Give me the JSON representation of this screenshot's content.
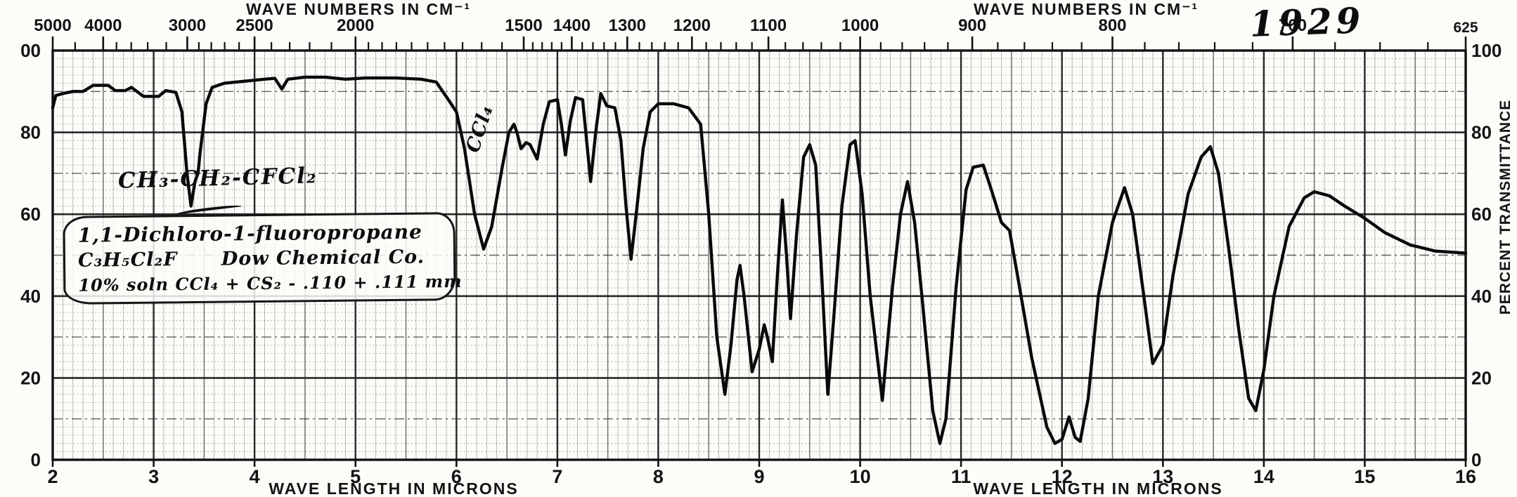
{
  "annotations": {
    "formula": "CH₃-CH₂-CFCl₂",
    "compound_name": "1,1-Dichloro-1-fluoropropane",
    "empirical_formula": "C₃H₅Cl₂F",
    "source": "Dow Chemical Co.",
    "sample_note": "10% soln CCl₄ + CS₂ - .110 + .111 mm",
    "solvent_band_label": "CCl₄",
    "spectrum_number": "1929"
  },
  "axes": {
    "top_title_left": "WAVE NUMBERS IN CM⁻¹",
    "top_title_right": "WAVE NUMBERS IN CM⁻¹",
    "bottom_title_left": "WAVE LENGTH IN MICRONS",
    "bottom_title_right": "WAVE LENGTH IN MICRONS",
    "right_title": "PERCENT TRANSMITTANCE"
  },
  "chart_data": {
    "type": "line",
    "title": "Infrared spectrum, 1,1-Dichloro-1-fluoropropane (spectrum no. 1929)",
    "xlabel": "WAVE LENGTH IN MICRONS",
    "ylabel": "PERCENT TRANSMITTANCE",
    "top_axis_label": "WAVE NUMBERS IN CM⁻¹",
    "xlim": [
      2,
      16
    ],
    "ylim": [
      0,
      100
    ],
    "grid": "fine 0.1 micron by 2 %T, heavy every 1 micron and 20 %T",
    "legend_position": "none",
    "x_tick_labels": [
      "2",
      "3",
      "4",
      "5",
      "6",
      "7",
      "8",
      "9",
      "10",
      "11",
      "12",
      "13",
      "14",
      "15",
      "16"
    ],
    "y_tick_values": [
      100,
      80,
      60,
      40,
      20,
      0
    ],
    "left_axis_display_labels": [
      "00",
      "80",
      "60",
      "40",
      "20",
      "0"
    ],
    "right_axis_display_labels": [
      "100",
      "80",
      "60",
      "40",
      "20",
      "0"
    ],
    "wavenumber_major_ticks": [
      5000,
      4000,
      3000,
      2500,
      2000,
      1500,
      1400,
      1300,
      1200,
      1100,
      1000,
      900,
      800,
      700,
      625
    ],
    "wavenumber_minor_ticks": [
      4500,
      3800,
      3600,
      3400,
      3200,
      2900,
      2800,
      2700,
      2600,
      2400,
      2300,
      2200,
      2100,
      1950,
      1900,
      1850,
      1800,
      1750,
      1700,
      1650,
      1600,
      1550,
      1480,
      1460,
      1440,
      1420,
      1380,
      1360,
      1340,
      1320,
      1280,
      1260,
      1240,
      1220,
      1180,
      1160,
      1140,
      1120,
      1080,
      1060,
      1040,
      1020,
      980,
      960,
      940,
      920,
      880,
      860,
      840,
      820,
      780,
      760,
      740,
      720,
      680,
      660,
      640
    ],
    "series": [
      {
        "name": "percent transmittance vs wavelength (microns)",
        "points": [
          [
            2.0,
            86
          ],
          [
            2.03,
            89
          ],
          [
            2.1,
            89.5
          ],
          [
            2.2,
            90
          ],
          [
            2.3,
            90
          ],
          [
            2.4,
            91.5
          ],
          [
            2.55,
            91.5
          ],
          [
            2.62,
            90.2
          ],
          [
            2.72,
            90.2
          ],
          [
            2.78,
            91
          ],
          [
            2.9,
            88.8
          ],
          [
            3.05,
            88.8
          ],
          [
            3.12,
            90.2
          ],
          [
            3.22,
            89.8
          ],
          [
            3.28,
            85
          ],
          [
            3.33,
            70
          ],
          [
            3.37,
            62
          ],
          [
            3.41,
            68
          ],
          [
            3.44,
            70
          ],
          [
            3.46,
            75
          ],
          [
            3.52,
            87
          ],
          [
            3.58,
            91
          ],
          [
            3.7,
            92
          ],
          [
            3.9,
            92.5
          ],
          [
            4.1,
            93
          ],
          [
            4.2,
            93.2
          ],
          [
            4.27,
            90.6
          ],
          [
            4.33,
            93
          ],
          [
            4.5,
            93.5
          ],
          [
            4.7,
            93.5
          ],
          [
            4.9,
            93
          ],
          [
            5.1,
            93.3
          ],
          [
            5.4,
            93.3
          ],
          [
            5.65,
            93
          ],
          [
            5.8,
            92.3
          ],
          [
            5.92,
            88
          ],
          [
            6.0,
            85
          ],
          [
            6.08,
            76
          ],
          [
            6.18,
            60
          ],
          [
            6.27,
            51.5
          ],
          [
            6.35,
            57
          ],
          [
            6.45,
            71
          ],
          [
            6.52,
            80
          ],
          [
            6.57,
            82
          ],
          [
            6.6,
            80
          ],
          [
            6.64,
            76
          ],
          [
            6.69,
            77.5
          ],
          [
            6.73,
            77
          ],
          [
            6.8,
            73.5
          ],
          [
            6.86,
            82
          ],
          [
            6.92,
            87.5
          ],
          [
            7.0,
            88
          ],
          [
            7.04,
            82
          ],
          [
            7.08,
            74.5
          ],
          [
            7.13,
            83
          ],
          [
            7.18,
            88.5
          ],
          [
            7.25,
            88
          ],
          [
            7.29,
            78
          ],
          [
            7.33,
            68
          ],
          [
            7.38,
            80
          ],
          [
            7.43,
            89.5
          ],
          [
            7.49,
            86.5
          ],
          [
            7.57,
            86
          ],
          [
            7.63,
            78
          ],
          [
            7.68,
            62
          ],
          [
            7.73,
            49
          ],
          [
            7.79,
            62
          ],
          [
            7.85,
            76
          ],
          [
            7.92,
            85
          ],
          [
            8.0,
            87
          ],
          [
            8.15,
            87
          ],
          [
            8.3,
            86
          ],
          [
            8.42,
            82
          ],
          [
            8.5,
            60
          ],
          [
            8.58,
            30
          ],
          [
            8.66,
            16
          ],
          [
            8.72,
            28
          ],
          [
            8.78,
            44
          ],
          [
            8.81,
            47.5
          ],
          [
            8.85,
            40
          ],
          [
            8.93,
            21.5
          ],
          [
            9.0,
            27
          ],
          [
            9.05,
            33
          ],
          [
            9.09,
            29
          ],
          [
            9.13,
            24
          ],
          [
            9.18,
            45
          ],
          [
            9.23,
            63.5
          ],
          [
            9.27,
            50
          ],
          [
            9.31,
            34.5
          ],
          [
            9.37,
            55
          ],
          [
            9.44,
            74
          ],
          [
            9.5,
            77
          ],
          [
            9.56,
            72
          ],
          [
            9.62,
            45
          ],
          [
            9.68,
            16
          ],
          [
            9.74,
            35
          ],
          [
            9.82,
            62
          ],
          [
            9.9,
            77
          ],
          [
            9.95,
            78
          ],
          [
            10.02,
            65
          ],
          [
            10.1,
            40
          ],
          [
            10.22,
            14.5
          ],
          [
            10.32,
            42
          ],
          [
            10.4,
            60
          ],
          [
            10.47,
            68
          ],
          [
            10.54,
            58
          ],
          [
            10.62,
            38
          ],
          [
            10.72,
            12
          ],
          [
            10.79,
            4
          ],
          [
            10.85,
            10
          ],
          [
            10.95,
            42
          ],
          [
            11.05,
            66
          ],
          [
            11.12,
            71.5
          ],
          [
            11.22,
            72
          ],
          [
            11.3,
            66
          ],
          [
            11.4,
            58
          ],
          [
            11.48,
            56
          ],
          [
            11.56,
            45
          ],
          [
            11.7,
            25
          ],
          [
            11.85,
            8
          ],
          [
            11.93,
            4
          ],
          [
            12.0,
            5
          ],
          [
            12.07,
            10.5
          ],
          [
            12.13,
            5.5
          ],
          [
            12.18,
            4.5
          ],
          [
            12.26,
            15
          ],
          [
            12.36,
            40
          ],
          [
            12.5,
            58
          ],
          [
            12.62,
            66.5
          ],
          [
            12.7,
            60
          ],
          [
            12.8,
            42
          ],
          [
            12.9,
            23.5
          ],
          [
            13.0,
            28
          ],
          [
            13.1,
            45
          ],
          [
            13.25,
            65
          ],
          [
            13.38,
            74
          ],
          [
            13.47,
            76.5
          ],
          [
            13.55,
            70
          ],
          [
            13.65,
            52
          ],
          [
            13.75,
            32
          ],
          [
            13.85,
            15
          ],
          [
            13.92,
            12
          ],
          [
            14.0,
            22
          ],
          [
            14.1,
            40
          ],
          [
            14.25,
            57
          ],
          [
            14.4,
            64
          ],
          [
            14.5,
            65.5
          ],
          [
            14.65,
            64.5
          ],
          [
            14.8,
            62
          ],
          [
            15.0,
            59
          ],
          [
            15.2,
            55.5
          ],
          [
            15.45,
            52.5
          ],
          [
            15.7,
            51
          ],
          [
            16.0,
            50.5
          ]
        ]
      }
    ]
  }
}
